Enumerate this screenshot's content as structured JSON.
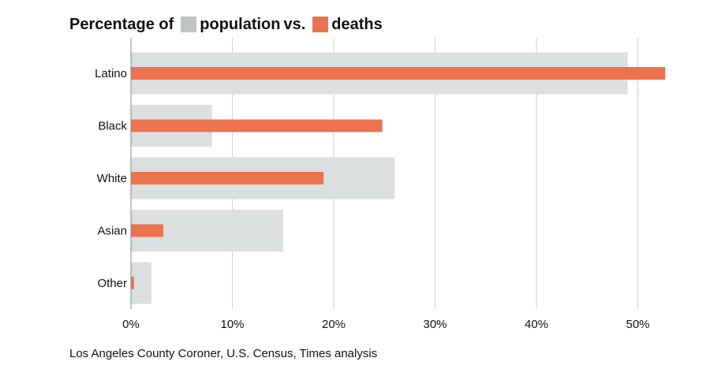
{
  "chart_data": {
    "type": "bar",
    "orientation": "horizontal",
    "title_prefix": "Percentage of",
    "title_connector": "vs.",
    "categories": [
      "Latino",
      "Black",
      "White",
      "Asian",
      "Other"
    ],
    "series": [
      {
        "name": "population",
        "color": "#dcdfe0",
        "values": [
          49,
          8,
          26,
          15,
          2
        ]
      },
      {
        "name": "deaths",
        "color": "#ec7350",
        "values": [
          52.7,
          24.8,
          19,
          3.2,
          0.3
        ]
      }
    ],
    "xlim": [
      0,
      55
    ],
    "ticks": [
      0,
      10,
      20,
      30,
      40,
      50
    ],
    "tick_labels": [
      "0%",
      "10%",
      "20%",
      "30%",
      "40%",
      "50%"
    ],
    "grid": true,
    "legend_swatch_colors": {
      "population": "#bfc4c6",
      "deaths": "#ec7350"
    }
  },
  "source": "Los Angeles County Coroner, U.S. Census, Times analysis"
}
